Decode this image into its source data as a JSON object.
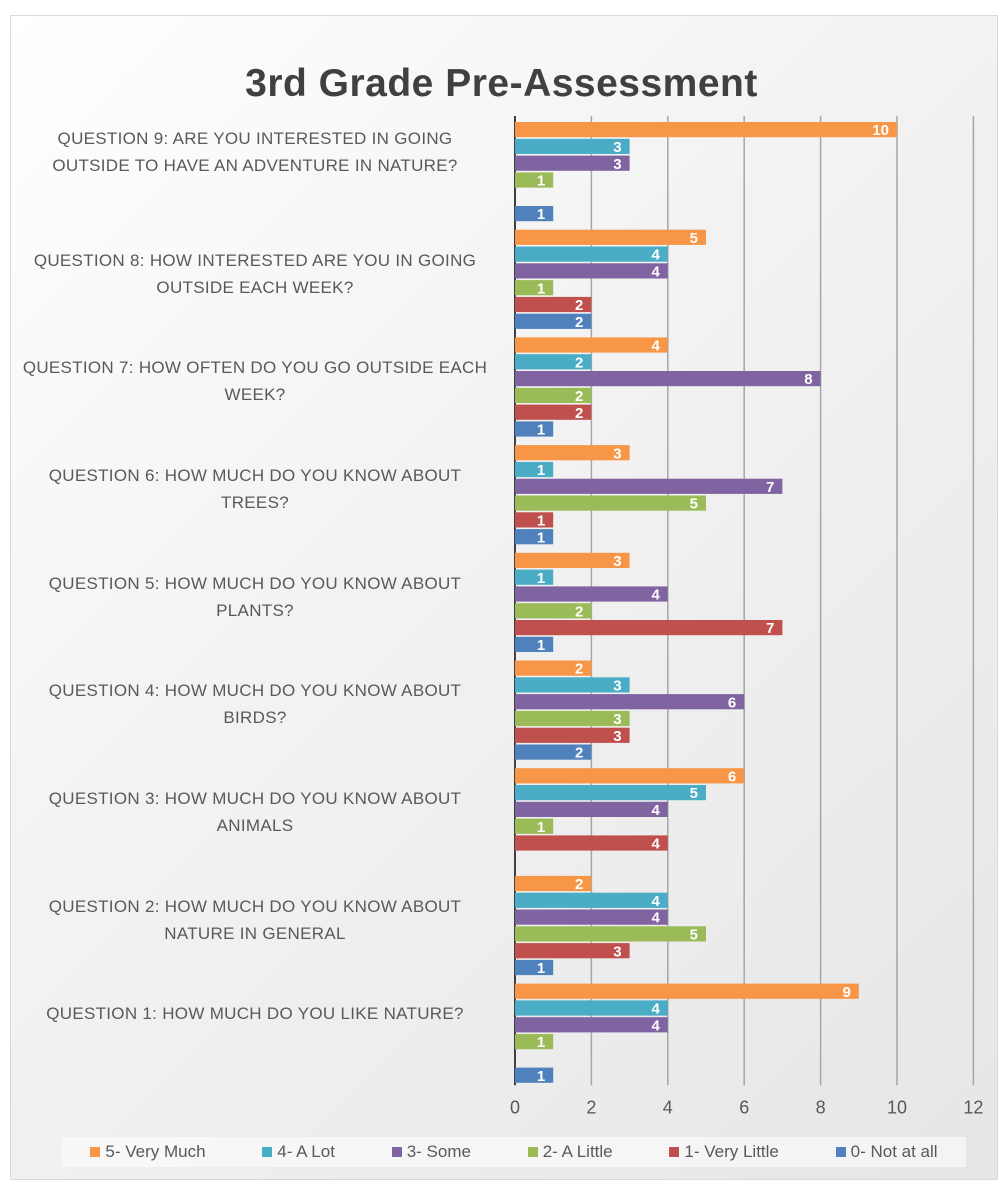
{
  "chart_data": {
    "type": "bar",
    "orientation": "horizontal",
    "title": "3rd Grade Pre-Assessment",
    "categories": [
      "QUESTION 9: ARE YOU INTERESTED IN GOING OUTSIDE TO HAVE AN ADVENTURE IN NATURE?",
      "QUESTION 8: HOW INTERESTED ARE YOU IN GOING OUTSIDE EACH WEEK?",
      "QUESTION 7: HOW OFTEN DO YOU GO OUTSIDE EACH WEEK?",
      "QUESTION 6: HOW MUCH DO YOU KNOW ABOUT TREES?",
      "QUESTION 5: HOW MUCH DO YOU KNOW ABOUT PLANTS?",
      "QUESTION 4: HOW MUCH DO YOU KNOW ABOUT BIRDS?",
      "QUESTION 3: HOW MUCH DO YOU KNOW ABOUT ANIMALS",
      "QUESTION 2: HOW MUCH DO YOU KNOW ABOUT NATURE IN GENERAL",
      "QUESTION 1: HOW MUCH DO YOU LIKE NATURE?"
    ],
    "series": [
      {
        "name": "5- Very Much",
        "color": "#f79646",
        "values": [
          10,
          5,
          4,
          3,
          3,
          2,
          6,
          2,
          9
        ]
      },
      {
        "name": "4- A Lot",
        "color": "#4bacc6",
        "values": [
          3,
          4,
          2,
          1,
          1,
          3,
          5,
          4,
          4
        ]
      },
      {
        "name": "3- Some",
        "color": "#8064a2",
        "values": [
          3,
          4,
          8,
          7,
          4,
          6,
          4,
          4,
          4
        ]
      },
      {
        "name": "2- A Little",
        "color": "#9bbb59",
        "values": [
          1,
          1,
          2,
          5,
          2,
          3,
          1,
          5,
          1
        ]
      },
      {
        "name": "1- Very Little",
        "color": "#c0504d",
        "values": [
          null,
          2,
          2,
          1,
          7,
          3,
          4,
          3,
          null
        ]
      },
      {
        "name": "0- Not at all",
        "color": "#4f81bd",
        "values": [
          1,
          2,
          1,
          1,
          1,
          2,
          null,
          1,
          1
        ]
      }
    ],
    "xlim": [
      0,
      12
    ],
    "xticks": [
      "0",
      "2",
      "4",
      "6",
      "8",
      "10",
      "12"
    ],
    "grid": true,
    "legend": "bottom",
    "data_labels": true
  }
}
